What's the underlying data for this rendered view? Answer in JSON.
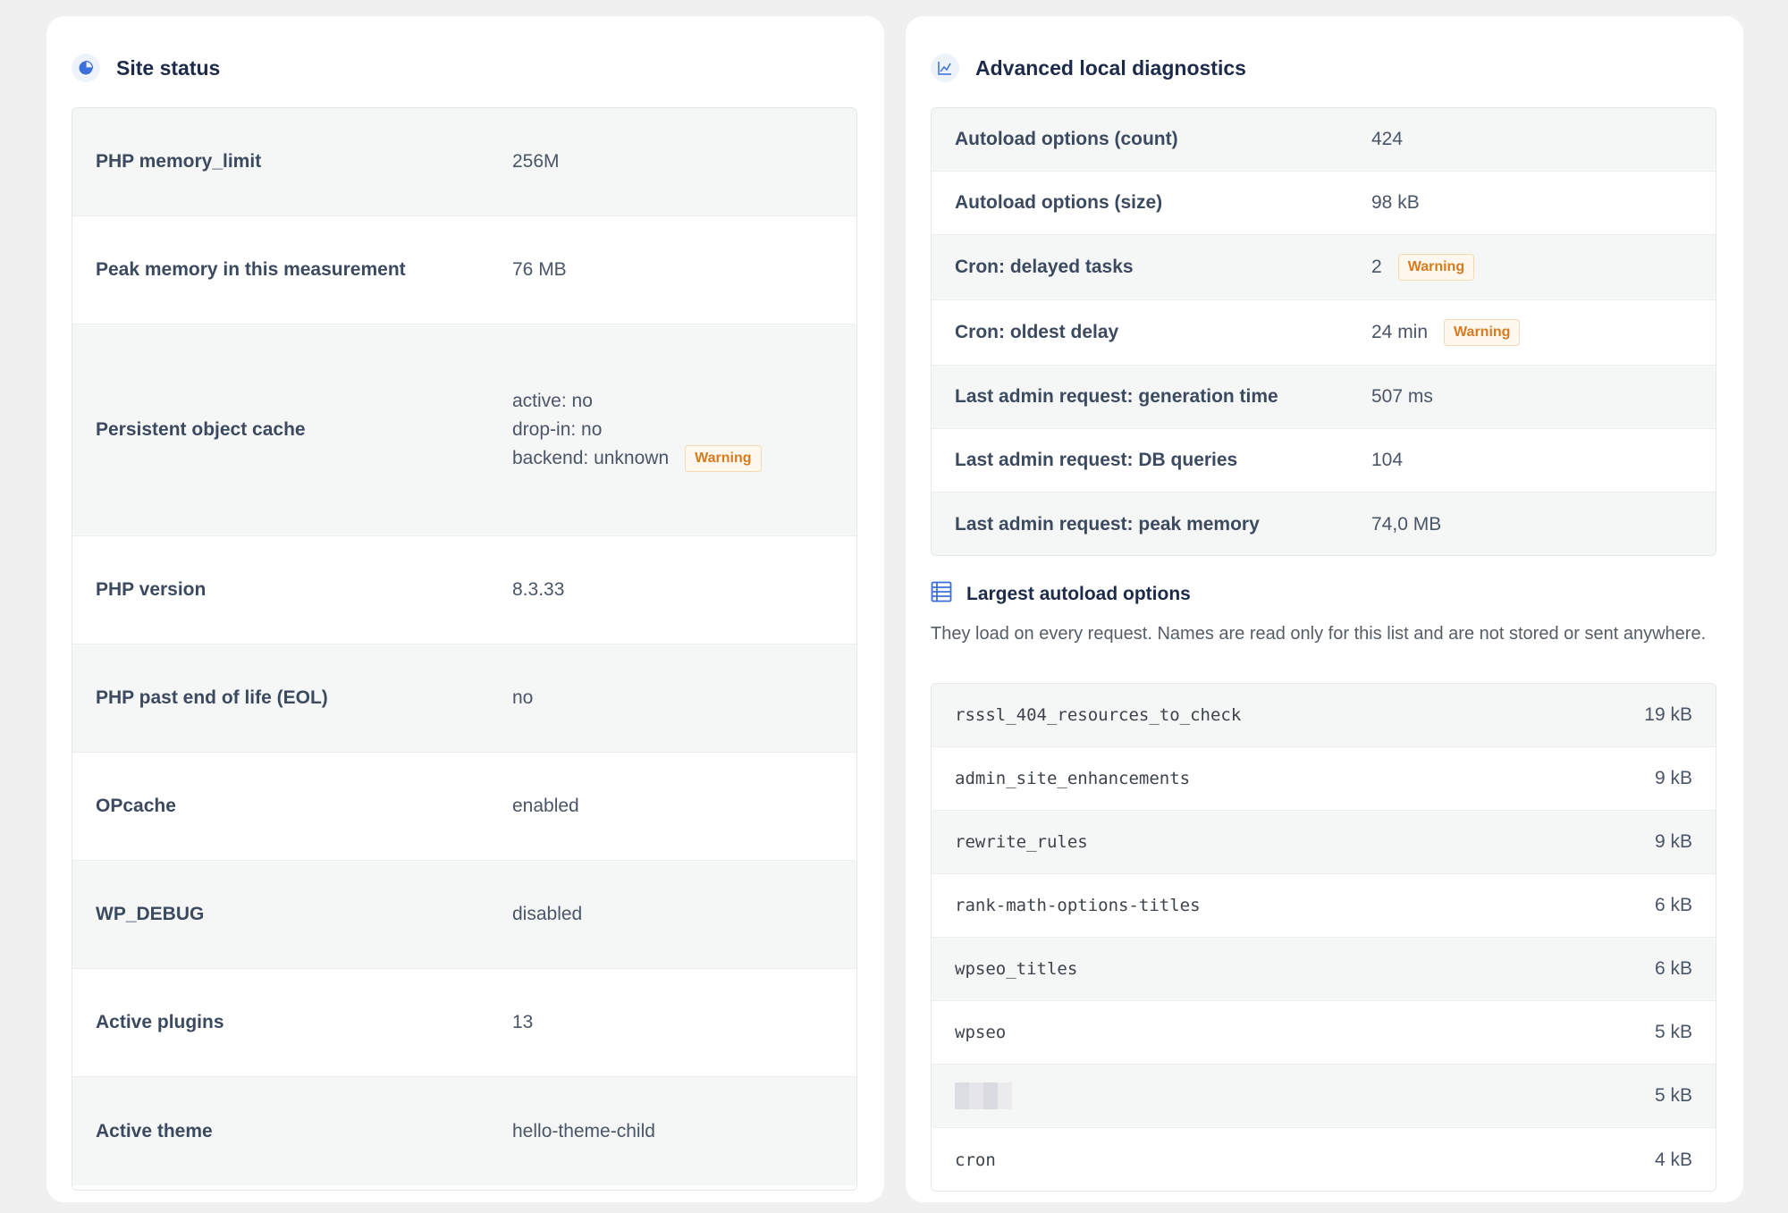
{
  "site_status": {
    "title": "Site status",
    "rows": [
      {
        "label": "PHP memory_limit",
        "value": "256M"
      },
      {
        "label": "Peak memory in this measurement",
        "value": "76 MB"
      },
      {
        "label": "Persistent object cache",
        "lines": [
          "active: no",
          "drop-in: no",
          "backend: unknown"
        ],
        "badge": "Warning"
      },
      {
        "label": "PHP version",
        "value": "8.3.33"
      },
      {
        "label": "PHP past end of life (EOL)",
        "value": "no"
      },
      {
        "label": "OPcache",
        "value": "enabled"
      },
      {
        "label": "WP_DEBUG",
        "value": "disabled"
      },
      {
        "label": "Active plugins",
        "value": "13"
      },
      {
        "label": "Active theme",
        "value": "hello-theme-child"
      }
    ]
  },
  "diagnostics": {
    "title": "Advanced local diagnostics",
    "rows": [
      {
        "label": "Autoload options (count)",
        "value": "424"
      },
      {
        "label": "Autoload options (size)",
        "value": "98 kB"
      },
      {
        "label": "Cron: delayed tasks",
        "value": "2",
        "badge": "Warning"
      },
      {
        "label": "Cron: oldest delay",
        "value": "24 min",
        "badge": "Warning"
      },
      {
        "label": "Last admin request: generation time",
        "value": "507 ms"
      },
      {
        "label": "Last admin request: DB queries",
        "value": "104"
      },
      {
        "label": "Last admin request: peak memory",
        "value": "74,0 MB"
      }
    ]
  },
  "autoload": {
    "title": "Largest autoload options",
    "description": "They load on every request. Names are read only for this list and are not stored or sent anywhere.",
    "items": [
      {
        "name": "rsssl_404_resources_to_check",
        "size": "19 kB"
      },
      {
        "name": "admin_site_enhancements",
        "size": "9 kB"
      },
      {
        "name": "rewrite_rules",
        "size": "9 kB"
      },
      {
        "name": "rank-math-options-titles",
        "size": "6 kB"
      },
      {
        "name": "wpseo_titles",
        "size": "6 kB"
      },
      {
        "name": "wpseo",
        "size": "5 kB"
      },
      {
        "name": "",
        "size": "5 kB"
      },
      {
        "name": "cron",
        "size": "4 kB"
      }
    ]
  },
  "colors": {
    "accent": "#3b6fd9",
    "warning": "#d97a1e"
  },
  "icons": [
    "pie-chart-icon",
    "line-chart-icon",
    "list-table-icon"
  ]
}
